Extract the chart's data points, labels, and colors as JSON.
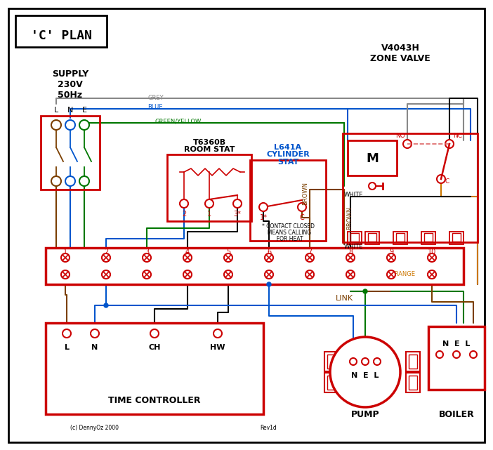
{
  "title": "'C' PLAN",
  "bg_color": "#ffffff",
  "red": "#cc0000",
  "blue": "#0055cc",
  "green": "#007700",
  "black": "#000000",
  "brown": "#7B3F00",
  "orange": "#cc7700",
  "grey": "#888888",
  "pink_red": "#dd6666",
  "copyright": "(c) DennyOz 2000",
  "revision": "Rev1d",
  "link_label": "LINK"
}
